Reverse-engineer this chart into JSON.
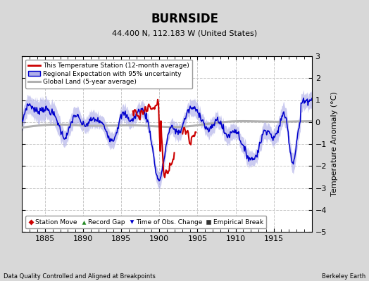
{
  "title": "BURNSIDE",
  "subtitle": "44.400 N, 112.183 W (United States)",
  "ylabel": "Temperature Anomaly (°C)",
  "xlabel_bottom": "Data Quality Controlled and Aligned at Breakpoints",
  "xlabel_right": "Berkeley Earth",
  "xlim": [
    1882,
    1920
  ],
  "ylim": [
    -5,
    3
  ],
  "yticks": [
    -5,
    -4,
    -3,
    -2,
    -1,
    0,
    1,
    2,
    3
  ],
  "xticks": [
    1885,
    1890,
    1895,
    1900,
    1905,
    1910,
    1915
  ],
  "bg_color": "#d8d8d8",
  "plot_bg_color": "#ffffff",
  "red_line_color": "#cc0000",
  "blue_line_color": "#0000cc",
  "blue_fill_color": "#b0b0e8",
  "gray_line_color": "#b0b0b0",
  "grid_color": "#c8c8c8",
  "legend1_entries": [
    "This Temperature Station (12-month average)",
    "Regional Expectation with 95% uncertainty",
    "Global Land (5-year average)"
  ],
  "legend2_entries": [
    "Station Move",
    "Record Gap",
    "Time of Obs. Change",
    "Empirical Break"
  ]
}
